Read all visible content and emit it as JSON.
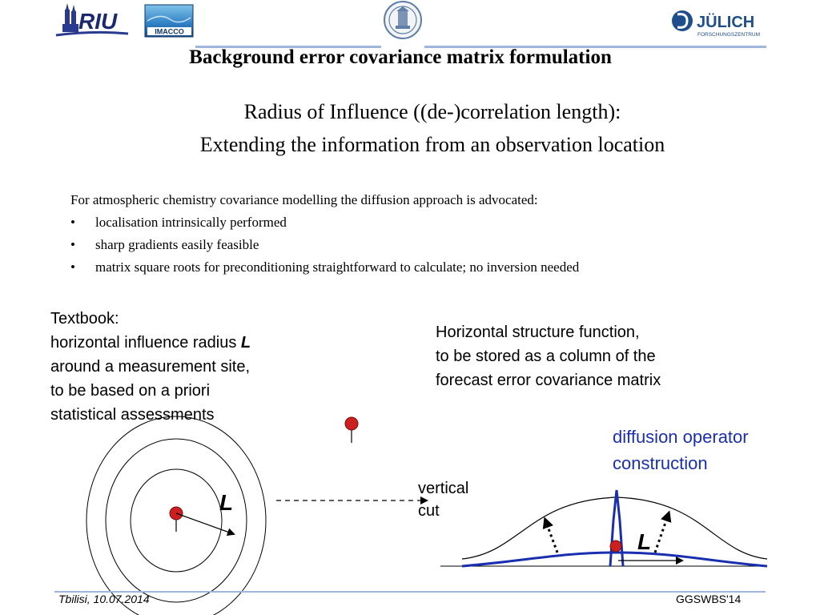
{
  "header": {
    "logos": {
      "riu": {
        "text": "RIU",
        "icon": "cathedral-icon"
      },
      "imacco": {
        "text": "IMACCO"
      },
      "seal": {
        "icon": "university-seal-icon"
      },
      "julich": {
        "text": "JÜLICH",
        "subtext": "FORSCHUNGSZENTRUM",
        "icon": "julich-swirl-icon"
      }
    },
    "rule_color": "#9fb6dc"
  },
  "title": "Background error covariance matrix  formulation",
  "subtitle": {
    "line1": "Radius of Influence ((de-)correlation length):",
    "line2": "Extending the information from an observation location"
  },
  "intro": "For atmospheric chemistry covariance modelling the diffusion approach is advocated:",
  "bullets": [
    "localisation intrinsically performed",
    "sharp gradients easily feasible",
    "matrix square roots for preconditioning straightforward  to calculate; no inversion needed"
  ],
  "bullet_symbol": "•",
  "textbook": {
    "line1": "Textbook:",
    "line2_prefix": "horizontal influence radius ",
    "line2_L": "L",
    "line3": "around a measurement site,",
    "line4": "to be based on a priori",
    "line5": "statistical assessments"
  },
  "horizontal_structure": {
    "line1": "Horizontal structure function,",
    "line2": "to  be stored as a column of the",
    "line3": "forecast error covariance matrix"
  },
  "diffusion": {
    "line1": "diffusion operator",
    "line2": "construction",
    "color": "#1a2fb0"
  },
  "vertical_cut": {
    "line1": "vertical",
    "line2": "cut"
  },
  "diagram": {
    "L_label_left": "L",
    "L_label_right": "L",
    "marker_color": "#cc1f1f",
    "curve_color": "#1a2fb0"
  },
  "footer": {
    "left": "Tbilisi, 10.07.2014",
    "right": "GGSWBS'14"
  }
}
